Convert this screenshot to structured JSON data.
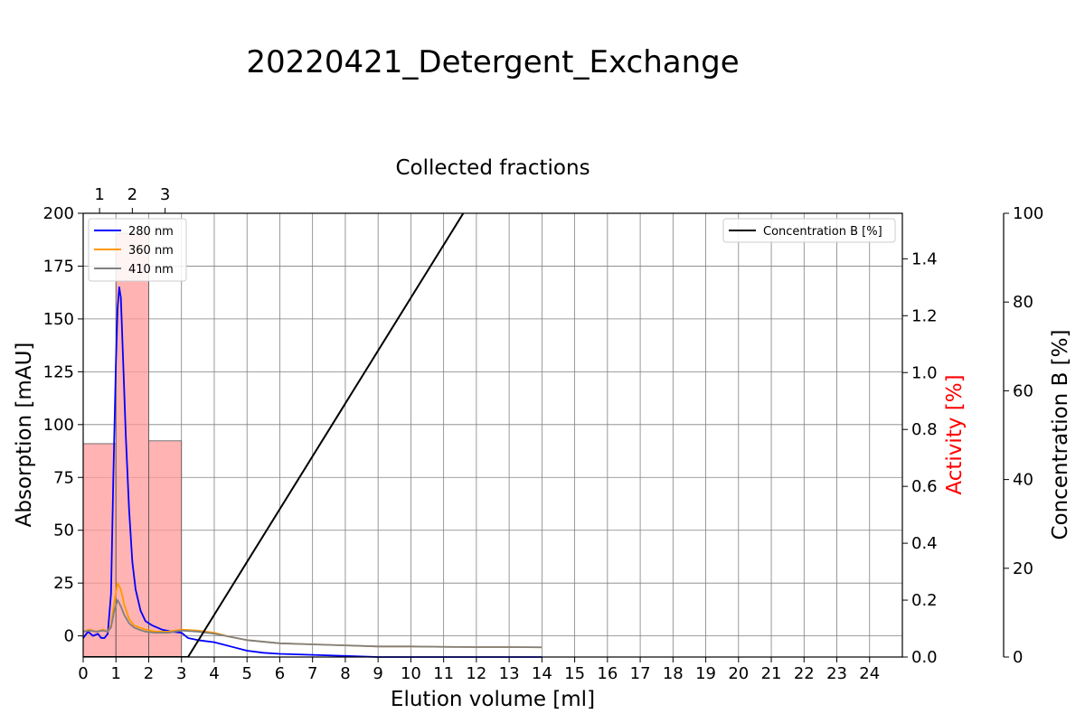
{
  "chart_data": {
    "type": "line",
    "title": "20220421_Detergent_Exchange",
    "top_axis_title": "Collected fractions",
    "fractions": [
      {
        "label": "1",
        "start": 0,
        "end": 1,
        "activity": 0.75
      },
      {
        "label": "2",
        "start": 1,
        "end": 2,
        "activity": 1.49
      },
      {
        "label": "3",
        "start": 2,
        "end": 3,
        "activity": 0.76
      }
    ],
    "xlabel": "Elution volume [ml]",
    "xlim": [
      0,
      25
    ],
    "xticks": [
      0,
      1,
      2,
      3,
      4,
      5,
      6,
      7,
      8,
      9,
      10,
      11,
      12,
      13,
      14,
      15,
      16,
      17,
      18,
      19,
      20,
      21,
      22,
      23,
      24
    ],
    "ylabel": "Absorption [mAU]",
    "ylim": [
      -10,
      200
    ],
    "yticks": [
      0,
      25,
      50,
      75,
      100,
      125,
      150,
      175,
      200
    ],
    "y2label": "Activity [%]",
    "y2label_color": "#ff0000",
    "y2lim": [
      0,
      1.56
    ],
    "y2ticks": [
      "0.0",
      "0.2",
      "0.4",
      "0.6",
      "0.8",
      "1.0",
      "1.2",
      "1.4"
    ],
    "y3label": "Concentration B [%]",
    "y3lim": [
      0,
      100
    ],
    "y3ticks": [
      0,
      20,
      40,
      60,
      80,
      100
    ],
    "grid": true,
    "legend_left_position": "upper-left",
    "legend_right_position": "upper-right",
    "bar_color": "#ff9999",
    "series": [
      {
        "name": "280 nm",
        "color": "#0000ff",
        "axis": "absorption",
        "x": [
          0,
          0.15,
          0.3,
          0.45,
          0.55,
          0.65,
          0.75,
          0.85,
          0.92,
          1.0,
          1.05,
          1.1,
          1.15,
          1.22,
          1.3,
          1.4,
          1.5,
          1.6,
          1.75,
          1.9,
          2.1,
          2.4,
          2.7,
          3.0,
          3.2,
          3.5,
          4.0,
          4.5,
          5.0,
          5.5,
          6.0,
          7.0,
          8.0,
          9.0,
          10.0,
          11.0,
          12.0,
          13.0,
          14.0
        ],
        "y": [
          -1,
          2,
          0,
          1,
          -1,
          -1,
          1,
          20,
          75,
          130,
          155,
          165,
          160,
          130,
          95,
          60,
          35,
          22,
          12,
          7,
          5,
          3,
          2,
          1.5,
          -1,
          -2,
          -3,
          -5,
          -7,
          -8,
          -8.5,
          -9,
          -9.5,
          -10,
          -10,
          -10,
          -10,
          -10,
          -10
        ]
      },
      {
        "name": "360 nm",
        "color": "#ff9900",
        "axis": "absorption",
        "x": [
          0,
          0.2,
          0.4,
          0.6,
          0.75,
          0.85,
          0.95,
          1.05,
          1.15,
          1.25,
          1.4,
          1.55,
          1.7,
          1.9,
          2.2,
          2.6,
          3.0,
          3.5,
          4.0,
          4.5,
          5.0,
          6.0,
          7.0,
          8.0,
          9.0,
          10.0,
          11.0,
          12.0,
          13.0,
          14.0
        ],
        "y": [
          2,
          3,
          2,
          3,
          2,
          5,
          16,
          25,
          22,
          15,
          8,
          5,
          4,
          3,
          2,
          2,
          3,
          2.5,
          1.5,
          -0.5,
          -2,
          -3.5,
          -4,
          -4.5,
          -5,
          -5,
          -5.2,
          -5.3,
          -5.3,
          -5.4
        ]
      },
      {
        "name": "410 nm",
        "color": "#808080",
        "axis": "absorption",
        "x": [
          0,
          0.2,
          0.4,
          0.6,
          0.75,
          0.85,
          0.95,
          1.05,
          1.15,
          1.25,
          1.4,
          1.55,
          1.7,
          1.9,
          2.2,
          2.6,
          3.0,
          3.5,
          4.0,
          4.5,
          5.0,
          6.0,
          7.0,
          8.0,
          9.0,
          10.0,
          11.0,
          12.0,
          13.0,
          14.0
        ],
        "y": [
          2,
          2.5,
          2,
          2.5,
          2,
          4,
          12,
          17,
          14,
          10,
          6,
          4,
          3,
          2,
          1.5,
          1.5,
          2.5,
          2,
          1,
          -0.5,
          -2,
          -3.5,
          -4,
          -4.5,
          -5,
          -5,
          -5.2,
          -5.3,
          -5.3,
          -5.4
        ]
      },
      {
        "name": "Concentration B [%]",
        "color": "#000000",
        "axis": "concentration",
        "x": [
          0,
          3.2,
          11.6
        ],
        "y": [
          0,
          0,
          100
        ]
      }
    ]
  }
}
